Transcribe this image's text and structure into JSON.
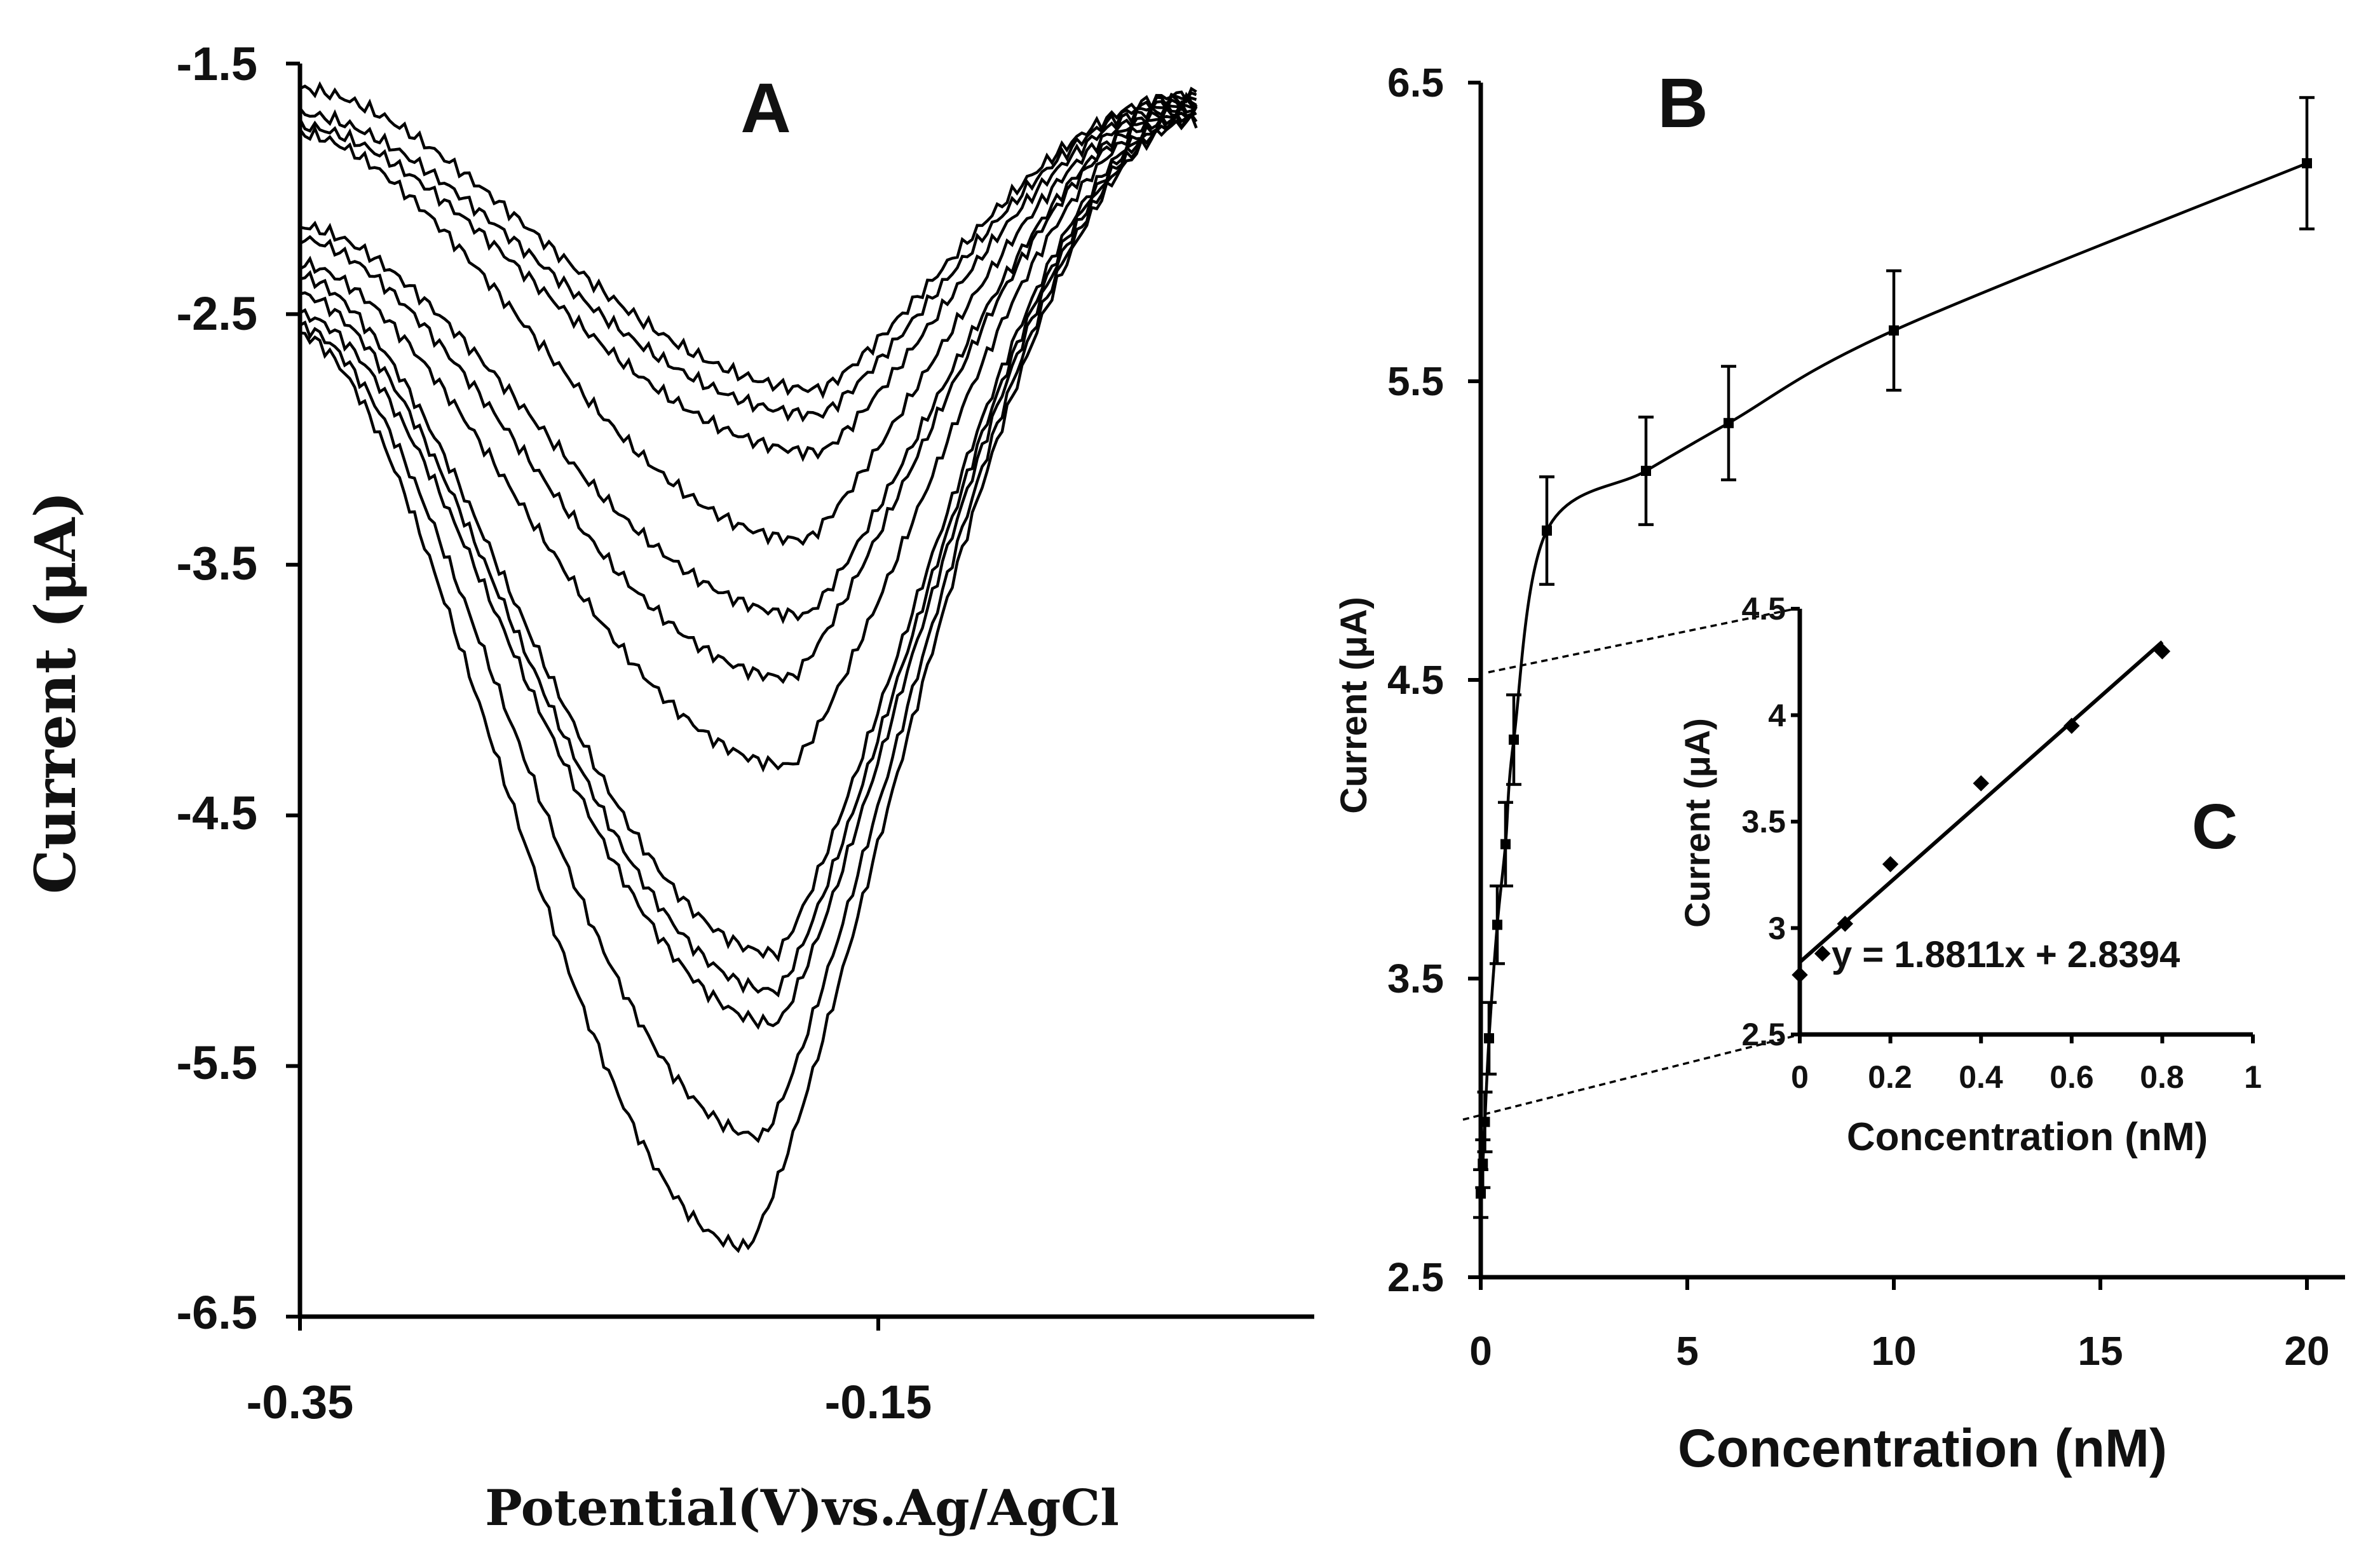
{
  "chart_data": [
    {
      "id": "A",
      "type": "line",
      "panel_label": "A",
      "title": "",
      "xlabel": "Potential(V)vs.Ag/AgCl",
      "ylabel": "Current (μA)",
      "xlim": [
        -0.35,
        0.0
      ],
      "ylim": [
        -6.5,
        -1.5
      ],
      "x_ticks": [
        -0.35,
        -0.15
      ],
      "x_tick_labels": [
        "-0.35",
        "-0.15"
      ],
      "y_ticks": [
        -1.5,
        -2.5,
        -3.5,
        -4.5,
        -5.5,
        -6.5
      ],
      "y_tick_labels": [
        "-1.5",
        "-2.5",
        "-3.5",
        "-4.5",
        "-5.5",
        "-6.5"
      ],
      "grid": false,
      "legend": "none",
      "series": [
        {
          "name": "curve 1",
          "start": -1.6,
          "peak": -2.8,
          "peak_x": -0.17,
          "end": -1.62
        },
        {
          "name": "curve 2",
          "start": -1.7,
          "peak": -2.9,
          "peak_x": -0.17,
          "end": -1.63
        },
        {
          "name": "curve 3",
          "start": -1.75,
          "peak": -3.05,
          "peak_x": -0.17,
          "end": -1.64
        },
        {
          "name": "curve 4",
          "start": -1.78,
          "peak": -3.4,
          "peak_x": -0.175,
          "end": -1.65
        },
        {
          "name": "curve 5",
          "start": -2.15,
          "peak": -3.7,
          "peak_x": -0.175,
          "end": -1.66
        },
        {
          "name": "curve 6",
          "start": -2.2,
          "peak": -3.95,
          "peak_x": -0.18,
          "end": -1.67
        },
        {
          "name": "curve 7",
          "start": -2.3,
          "peak": -4.3,
          "peak_x": -0.18,
          "end": -1.68
        },
        {
          "name": "curve 8",
          "start": -2.35,
          "peak": -5.05,
          "peak_x": -0.185,
          "end": -1.69
        },
        {
          "name": "curve 9",
          "start": -2.42,
          "peak": -5.2,
          "peak_x": -0.185,
          "end": -1.7
        },
        {
          "name": "curve 10",
          "start": -2.5,
          "peak": -5.33,
          "peak_x": -0.185,
          "end": -1.71
        },
        {
          "name": "curve 11",
          "start": -2.55,
          "peak": -5.78,
          "peak_x": -0.19,
          "end": -1.72
        },
        {
          "name": "curve 12",
          "start": -2.58,
          "peak": -6.22,
          "peak_x": -0.195,
          "end": -1.73
        }
      ]
    },
    {
      "id": "B",
      "type": "line",
      "panel_label": "B",
      "title": "",
      "xlabel": "Concentration (nM)",
      "ylabel": "Current (μA)",
      "xlim": [
        0,
        20
      ],
      "ylim": [
        2.5,
        6.5
      ],
      "x_ticks": [
        0,
        5,
        10,
        15,
        20
      ],
      "x_tick_labels": [
        "0",
        "5",
        "10",
        "15",
        "20"
      ],
      "y_ticks": [
        2.5,
        3.5,
        4.5,
        5.5,
        6.5
      ],
      "y_tick_labels": [
        "2.5",
        "3.5",
        "4.5",
        "5.5",
        "6.5"
      ],
      "grid": false,
      "legend": "none",
      "x": [
        0,
        0.05,
        0.1,
        0.2,
        0.4,
        0.6,
        0.8,
        1.6,
        4,
        6,
        10,
        20
      ],
      "y": [
        2.78,
        2.88,
        3.02,
        3.3,
        3.68,
        3.95,
        4.3,
        5.0,
        5.2,
        5.36,
        5.67,
        6.23
      ],
      "error": [
        0.08,
        0.08,
        0.1,
        0.12,
        0.13,
        0.14,
        0.15,
        0.18,
        0.18,
        0.19,
        0.2,
        0.22
      ]
    },
    {
      "id": "C",
      "type": "scatter",
      "panel_label": "C",
      "title": "",
      "xlabel": "Concentration (nM)",
      "ylabel": "Current (μA)",
      "xlim": [
        0,
        1
      ],
      "ylim": [
        2.5,
        4.5
      ],
      "x_ticks": [
        0,
        0.2,
        0.4,
        0.6,
        0.8,
        1
      ],
      "x_tick_labels": [
        "0",
        "0.2",
        "0.4",
        "0.6",
        "0.8",
        "1"
      ],
      "y_ticks": [
        2.5,
        3,
        3.5,
        4,
        4.5
      ],
      "y_tick_labels": [
        "2.5",
        "3",
        "3.5",
        "4",
        "4.5"
      ],
      "grid": false,
      "legend": "none",
      "x": [
        0,
        0.05,
        0.1,
        0.2,
        0.4,
        0.6,
        0.8
      ],
      "y": [
        2.78,
        2.88,
        3.02,
        3.3,
        3.68,
        3.95,
        4.3
      ],
      "fit": {
        "slope": 1.8811,
        "intercept": 2.8394,
        "equation": "y = 1.8811x + 2.8394"
      }
    }
  ]
}
